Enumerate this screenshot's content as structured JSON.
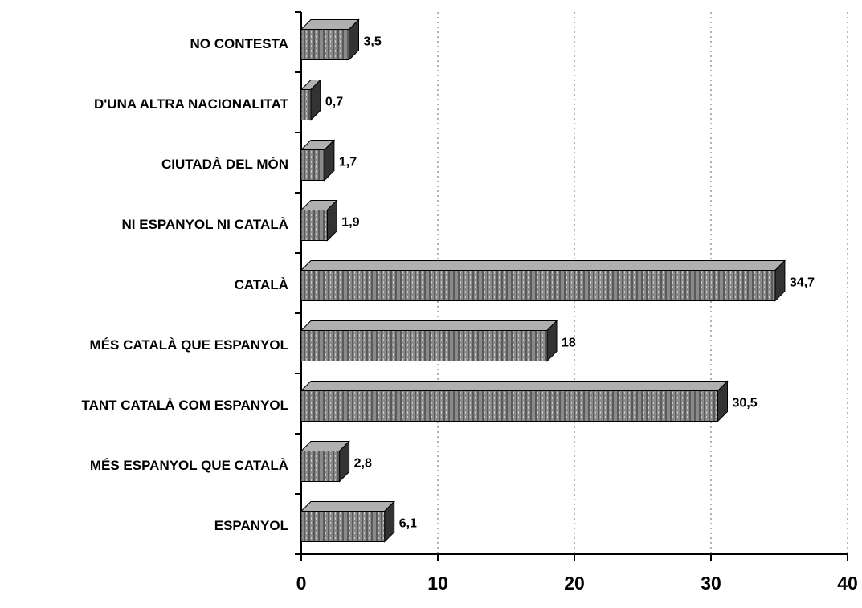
{
  "chart_data": {
    "type": "hbar",
    "categories": [
      "NO CONTESTA",
      "D'UNA ALTRA NACIONALITAT",
      "CIUTADÀ DEL MÓN",
      "NI ESPANYOL NI CATALÀ",
      "CATALÀ",
      "MÉS CATALÀ QUE ESPANYOL",
      "TANT CATALÀ COM ESPANYOL",
      "MÉS ESPANYOL QUE CATALÀ",
      "ESPANYOL"
    ],
    "values": [
      3.5,
      0.7,
      1.7,
      1.9,
      34.7,
      18,
      30.5,
      2.8,
      6.1
    ],
    "value_labels": [
      "3,5",
      "0,7",
      "1,7",
      "1,9",
      "34,7",
      "18",
      "30,5",
      "2,8",
      "6,1"
    ],
    "color": "#8a8a8a",
    "xlim": [
      0,
      40
    ],
    "xticks": [
      0,
      10,
      20,
      30,
      40
    ],
    "grid": true
  }
}
